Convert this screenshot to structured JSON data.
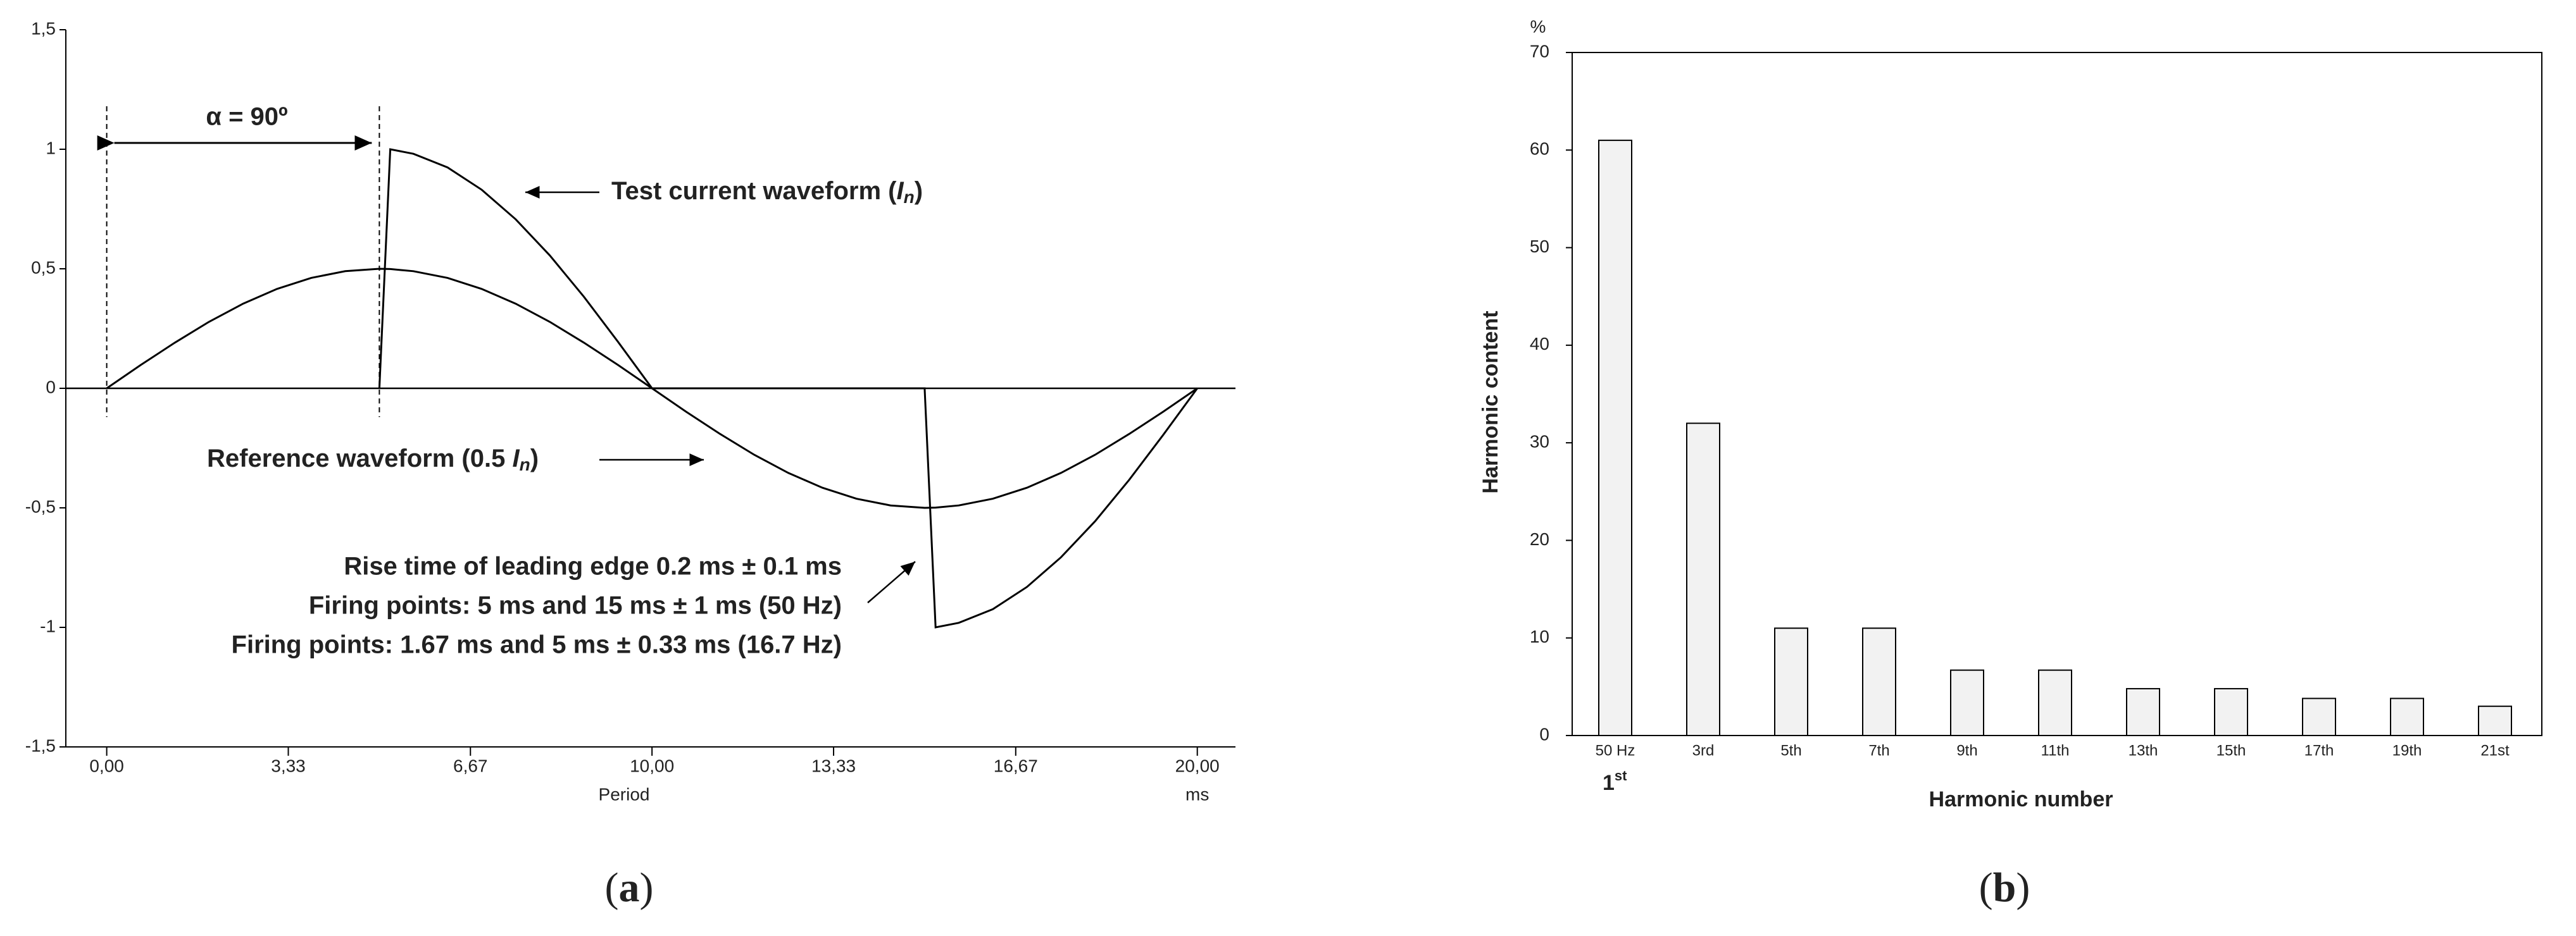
{
  "chart_data": [
    {
      "type": "line",
      "x": [
        0,
        0.625,
        1.25,
        1.875,
        2.5,
        3.125,
        3.75,
        4.375,
        5,
        5.2,
        5.625,
        6.25,
        6.875,
        7.5,
        8.125,
        8.75,
        9.375,
        10,
        10.625,
        11.25,
        11.875,
        12.5,
        13.125,
        13.75,
        14.375,
        15,
        15.2,
        15.625,
        16.25,
        16.875,
        17.5,
        18.125,
        18.75,
        19.375,
        20
      ],
      "series": [
        {
          "color": "#000000",
          "values": [
            0,
            0.098,
            0.191,
            0.278,
            0.354,
            0.416,
            0.462,
            0.49,
            0.5,
            0.499,
            0.49,
            0.462,
            0.416,
            0.354,
            0.278,
            0.191,
            0.098,
            0,
            -0.098,
            -0.191,
            -0.278,
            -0.354,
            -0.416,
            -0.462,
            -0.49,
            -0.5,
            -0.499,
            -0.49,
            -0.462,
            -0.416,
            -0.354,
            -0.278,
            -0.191,
            -0.098,
            0
          ]
        },
        {
          "color": "#000000",
          "values": [
            null,
            null,
            null,
            null,
            null,
            null,
            null,
            null,
            0,
            1,
            0.981,
            0.924,
            0.831,
            0.707,
            0.556,
            0.383,
            0.195,
            0,
            0,
            0,
            0,
            0,
            0,
            0,
            0,
            0,
            -1,
            -0.981,
            -0.924,
            -0.831,
            -0.707,
            -0.556,
            -0.383,
            -0.195,
            0
          ]
        }
      ],
      "xlim": [
        -0.75,
        20.7
      ],
      "ylim": [
        -1.5,
        1.5
      ],
      "xticks": [
        {
          "value": 0,
          "label": "0,00"
        },
        {
          "value": 3.33,
          "label": "3,33"
        },
        {
          "value": 6.67,
          "label": "6,67"
        },
        {
          "value": 10,
          "label": "10,00"
        },
        {
          "value": 13.33,
          "label": "13,33"
        },
        {
          "value": 16.67,
          "label": "16,67"
        },
        {
          "value": 20,
          "label": "20,00"
        }
      ],
      "yticks": [
        {
          "value": 1.5,
          "label": "1,5"
        },
        1,
        {
          "value": 0.5,
          "label": "0,5"
        },
        0,
        {
          "value": -0.5,
          "label": "-0,5"
        },
        -1,
        {
          "value": -1.5,
          "label": "-1,5"
        }
      ],
      "xlabel": "Period",
      "x_unit": "ms",
      "annotations": {
        "alpha": "α = 90º",
        "test_current": [
          "Test current waveform (",
          "I",
          "n",
          ")"
        ],
        "reference": [
          "Reference waveform (0.5 ",
          "I",
          "n",
          ")"
        ],
        "notes": [
          "Rise time of leading edge 0.2 ms ± 0.1 ms",
          "Firing points: 5 ms and 15 ms ± 1 ms (50 Hz)",
          "Firing points: 1.67 ms and 5 ms ± 0.33 ms (16.7 Hz)"
        ]
      },
      "panel_label": [
        "(",
        "a",
        ")"
      ]
    },
    {
      "type": "bar",
      "categories": [
        "50 Hz",
        "3rd",
        "5th",
        "7th",
        "9th",
        "11th",
        "13th",
        "15th",
        "17th",
        "19th",
        "21st"
      ],
      "values": [
        61,
        32,
        11,
        11,
        6.7,
        6.7,
        4.8,
        4.8,
        3.8,
        3.8,
        3
      ],
      "color": "#f2f2f2",
      "ylim": [
        0,
        70
      ],
      "yticks": [
        0,
        10,
        20,
        30,
        40,
        50,
        60,
        70
      ],
      "y_unit": "%",
      "ylabel": "Harmonic content",
      "xlabel": "Harmonic number",
      "first_harmonic": [
        "1",
        "st"
      ],
      "panel_label": [
        "(",
        "b",
        ")"
      ]
    }
  ]
}
